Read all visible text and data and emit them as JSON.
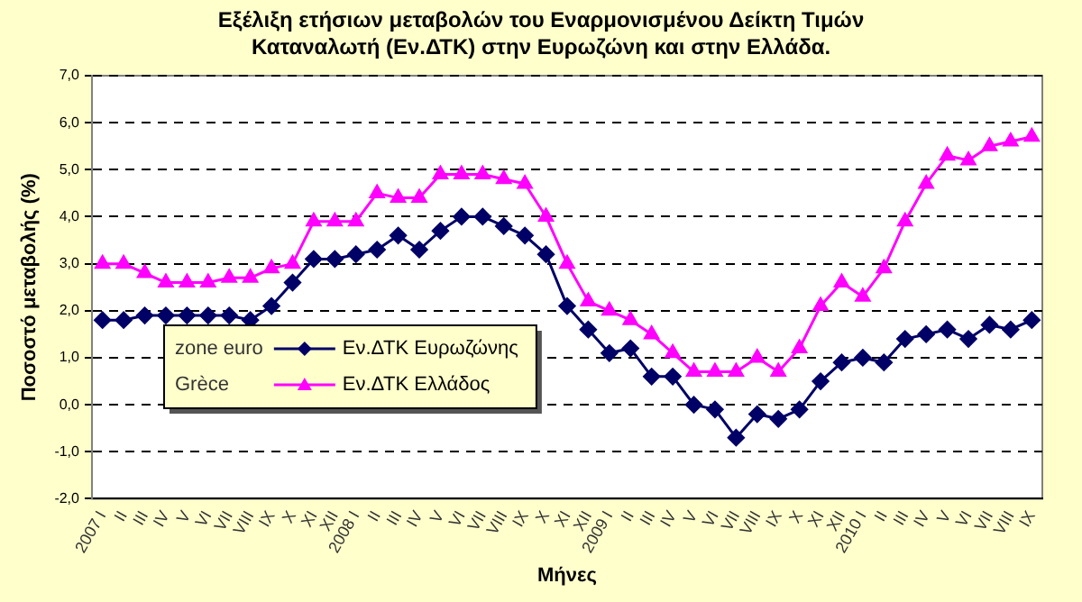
{
  "chart_data": {
    "type": "line",
    "title": "Εξέλιξη ετήσιων μεταβολών του Εναρμονισμένου Δείκτη Τιμών Καταναλωτή (Εν.ΔΤΚ) στην Ευρωζώνη  και στην Ελλάδα.",
    "xlabel": "Μήνες",
    "ylabel": "Ποσοστό μεταβολής (%)",
    "categories": [
      "2007 I",
      "II",
      "III",
      "IV",
      "V",
      "VI",
      "VII",
      "VIII",
      "IX",
      "X",
      "XI",
      "XII",
      "2008 I",
      "II",
      "III",
      "IV",
      "V",
      "VI",
      "VII",
      "VIII",
      "IX",
      "X",
      "XI",
      "XII",
      "2009 I",
      "II",
      "III",
      "IV",
      "V",
      "VI",
      "VII",
      "VIII",
      "IX",
      "X",
      "XI",
      "XII",
      "2010 I",
      "II",
      "III",
      "IV",
      "V",
      "VI",
      "VII",
      "VIII",
      "IX"
    ],
    "series": [
      {
        "name": "Εν.ΔΤΚ Ευρωζώνης",
        "color": "#000066",
        "marker": "diamond",
        "values": [
          1.8,
          1.8,
          1.9,
          1.9,
          1.9,
          1.9,
          1.9,
          1.8,
          2.1,
          2.6,
          3.1,
          3.1,
          3.2,
          3.3,
          3.6,
          3.3,
          3.7,
          4.0,
          4.0,
          3.8,
          3.6,
          3.2,
          2.1,
          1.6,
          1.1,
          1.2,
          0.6,
          0.6,
          0.0,
          -0.1,
          -0.7,
          -0.2,
          -0.3,
          -0.1,
          0.5,
          0.9,
          1.0,
          0.9,
          1.4,
          1.5,
          1.6,
          1.4,
          1.7,
          1.6,
          1.8
        ]
      },
      {
        "name": "Εν.ΔΤΚ Ελλάδος",
        "color": "#ff00ff",
        "marker": "triangle",
        "values": [
          3.0,
          3.0,
          2.8,
          2.6,
          2.6,
          2.6,
          2.7,
          2.7,
          2.9,
          3.0,
          3.9,
          3.9,
          3.9,
          4.5,
          4.4,
          4.4,
          4.9,
          4.9,
          4.9,
          4.8,
          4.7,
          4.0,
          3.0,
          2.2,
          2.0,
          1.8,
          1.5,
          1.1,
          0.7,
          0.7,
          0.7,
          1.0,
          0.7,
          1.2,
          2.1,
          2.6,
          2.3,
          2.9,
          3.9,
          4.7,
          5.3,
          5.2,
          5.5,
          5.6,
          5.7
        ]
      }
    ],
    "annotations": [
      "zone euro",
      "Grèce"
    ],
    "ylim": [
      -2,
      7
    ],
    "yticks": [
      {
        "value": -2,
        "label": "-2,0"
      },
      {
        "value": -1,
        "label": "-1,0"
      },
      {
        "value": 0,
        "label": "0,0"
      },
      {
        "value": 1,
        "label": "1,0"
      },
      {
        "value": 2,
        "label": "2,0"
      },
      {
        "value": 3,
        "label": "3,0"
      },
      {
        "value": 4,
        "label": "4,0"
      },
      {
        "value": 5,
        "label": "5,0"
      },
      {
        "value": 6,
        "label": "6,0"
      },
      {
        "value": 7,
        "label": "7,0"
      }
    ],
    "grid": "y",
    "legend": "bottom left",
    "line_style": "solid"
  }
}
